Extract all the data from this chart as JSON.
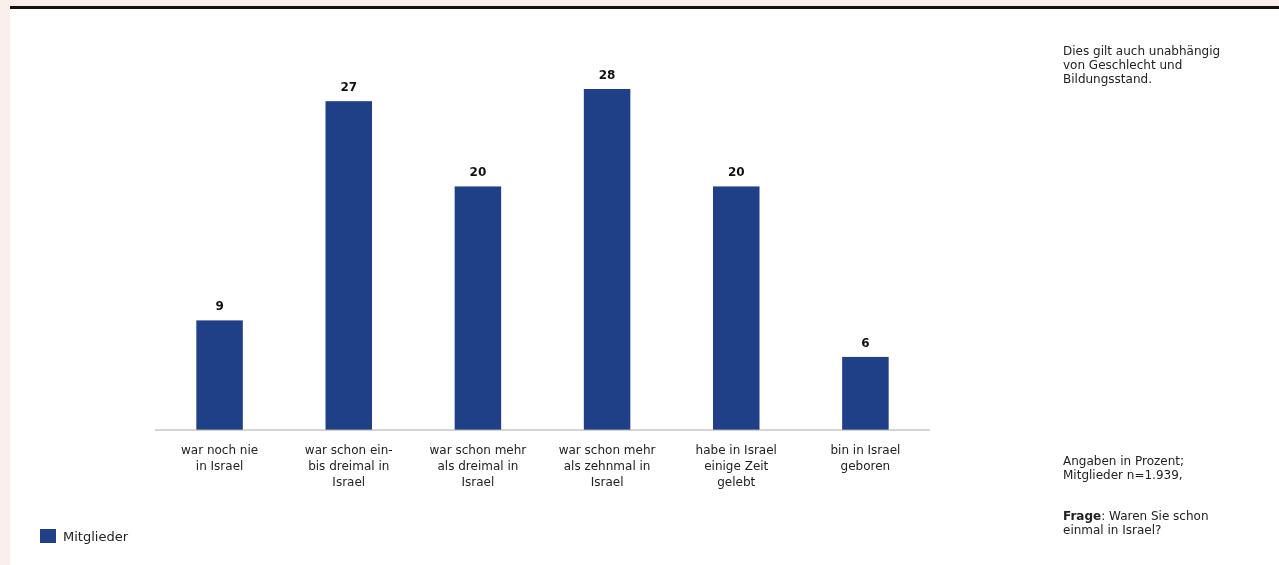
{
  "chart_data": {
    "type": "bar",
    "categories": [
      "war noch nie in Israel",
      "war schon ein- bis dreimal in Israel",
      "war schon mehr als dreimal in Israel",
      "war schon mehr als zehnmal in Israel",
      "habe in Israel einige Zeit gelebt",
      "bin in Israel geboren"
    ],
    "series": [
      {
        "name": "Mitglieder",
        "color": "#1f3f86",
        "values": [
          9,
          27,
          20,
          28,
          20,
          6
        ]
      }
    ],
    "data_labels": true,
    "legend": "bottom left",
    "annotations": [
      "Dies gilt auch unabhängig von Geschlecht und Bildungsstand.",
      "Angaben in Prozent; Mitglieder n=1.939,",
      "Frage: Waren Sie schon einmal in Israel?"
    ]
  }
}
